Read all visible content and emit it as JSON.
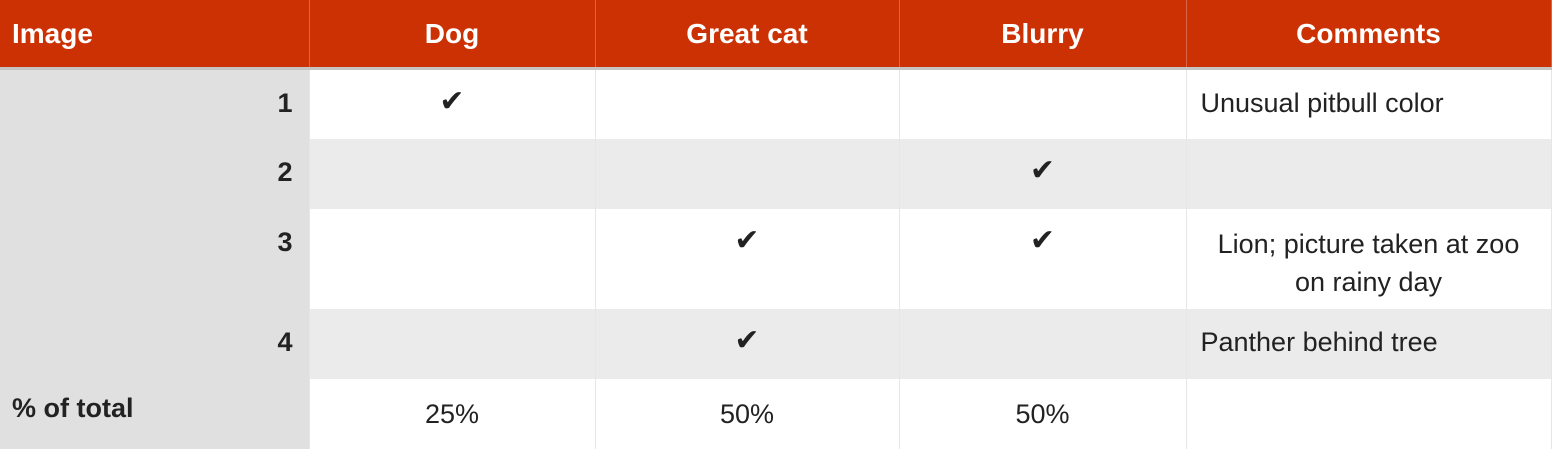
{
  "colors": {
    "header_bg": "#cc3104",
    "header_text": "#ffffff",
    "index_bg": "#e0e0e0",
    "stripe_bg": "#ebebeb"
  },
  "headers": [
    "Image",
    "Dog",
    "Great cat",
    "Blurry",
    "Comments"
  ],
  "check_icon": "✔",
  "rows": [
    {
      "image": "1",
      "dog": "✔",
      "great_cat": "",
      "blurry": "",
      "comment": "Unusual pitbull color"
    },
    {
      "image": "2",
      "dog": "",
      "great_cat": "",
      "blurry": "✔",
      "comment": ""
    },
    {
      "image": "3",
      "dog": "",
      "great_cat": "✔",
      "blurry": "✔",
      "comment": "Lion; picture taken at zoo on rainy day"
    },
    {
      "image": "4",
      "dog": "",
      "great_cat": "✔",
      "blurry": "",
      "comment": "Panther behind tree"
    }
  ],
  "total": {
    "label": "% of total",
    "dog": "25%",
    "great_cat": "50%",
    "blurry": "50%",
    "comment": ""
  }
}
